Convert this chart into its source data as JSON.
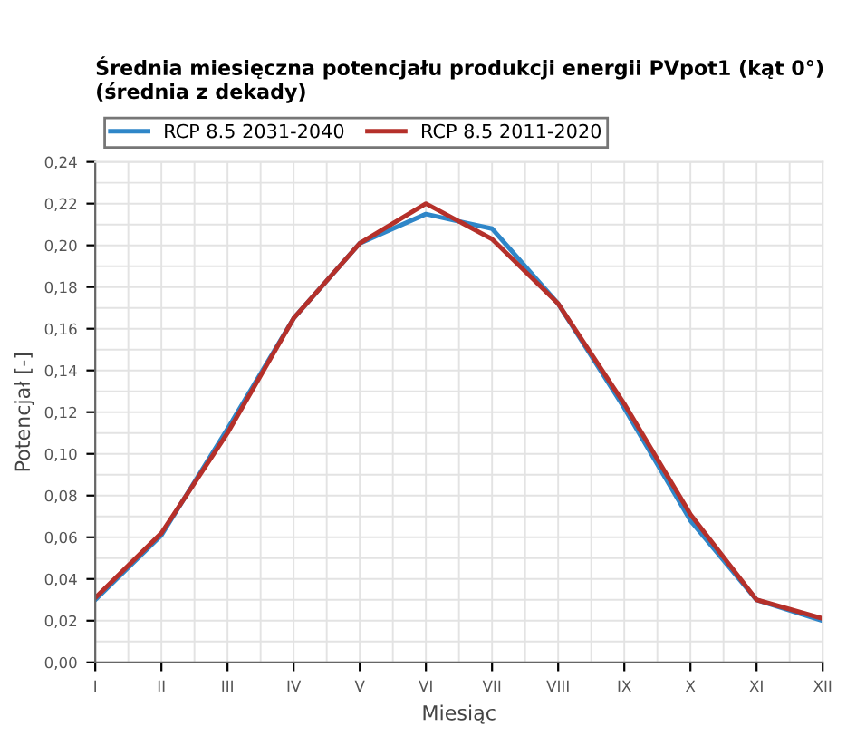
{
  "chart_data": {
    "type": "line",
    "title": "Średnia miesięczna potencjału produkcji energii PVpot1 (kąt 0°)\n(średnia z dekady)",
    "xlabel": "Miesiąc",
    "ylabel": "Potencjał [-]",
    "categories": [
      "I",
      "II",
      "III",
      "IV",
      "V",
      "VI",
      "VII",
      "VIII",
      "IX",
      "X",
      "XI",
      "XII"
    ],
    "series": [
      {
        "name": "RCP 8.5 2031-2040",
        "color": "#2f86c8",
        "values": [
          0.03,
          0.061,
          0.112,
          0.165,
          0.201,
          0.215,
          0.208,
          0.172,
          0.122,
          0.068,
          0.03,
          0.02
        ]
      },
      {
        "name": "RCP 8.5 2011-2020",
        "color": "#b5302a",
        "values": [
          0.031,
          0.062,
          0.11,
          0.165,
          0.201,
          0.22,
          0.203,
          0.172,
          0.124,
          0.071,
          0.03,
          0.021
        ]
      }
    ],
    "ylim": [
      0,
      0.24
    ],
    "yticks": [
      {
        "value": 0,
        "label": "0,00"
      },
      {
        "value": 0.02,
        "label": "0,02"
      },
      {
        "value": 0.04,
        "label": "0,04"
      },
      {
        "value": 0.06,
        "label": "0,06"
      },
      {
        "value": 0.08,
        "label": "0,08"
      },
      {
        "value": 0.1,
        "label": "0,10"
      },
      {
        "value": 0.12,
        "label": "0,12"
      },
      {
        "value": 0.14,
        "label": "0,14"
      },
      {
        "value": 0.16,
        "label": "0,16"
      },
      {
        "value": 0.18,
        "label": "0,18"
      },
      {
        "value": 0.2,
        "label": "0,20"
      },
      {
        "value": 0.22,
        "label": "0,22"
      },
      {
        "value": 0.24,
        "label": "0,24"
      }
    ],
    "grid": true,
    "legend": "top",
    "marker": "none",
    "line_style": "solid"
  }
}
